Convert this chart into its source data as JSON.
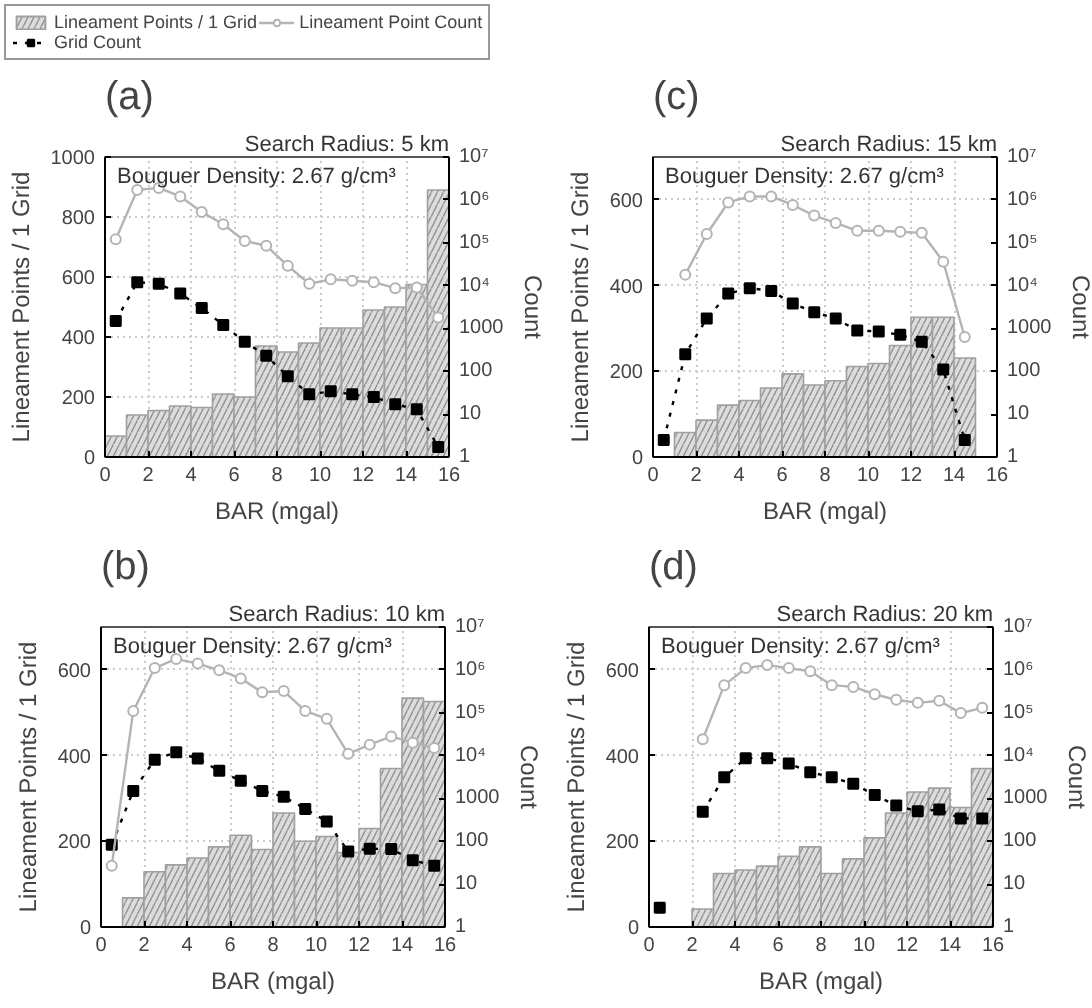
{
  "chart_data": [
    {
      "type": "bar",
      "title": "(a)",
      "xlabel": "BAR (mgal)",
      "ylabel": "Lineament Points / 1 Grid",
      "y2label": "Count",
      "annotations": [
        "Search Radius: 5 km",
        "Bouguer Density: 2.67 g/cm³"
      ],
      "x": [
        0.5,
        1.5,
        2.5,
        3.5,
        4.5,
        5.5,
        6.5,
        7.5,
        8.5,
        9.5,
        10.5,
        11.5,
        12.5,
        13.5,
        14.5,
        15.5
      ],
      "series": [
        {
          "name": "Lineament Points / 1 Grid",
          "color": "#dcdcdc",
          "values": [
            70,
            140,
            155,
            170,
            165,
            210,
            200,
            370,
            350,
            380,
            430,
            430,
            490,
            500,
            575,
            890
          ]
        },
        {
          "name": "Grid Count",
          "type": "line",
          "axis": "y2",
          "color": "#000000",
          "marker": "square",
          "line_style": "dotted",
          "values": [
            1500,
            12000,
            11000,
            6500,
            3000,
            1200,
            490,
            230,
            77,
            29,
            34,
            29,
            25,
            17,
            13,
            1.7
          ]
        },
        {
          "name": "Lineament Point Count",
          "type": "line",
          "axis": "y2",
          "color": "#b4b4b4",
          "marker": "circle",
          "line_style": "solid",
          "values": [
            120000,
            1700000,
            1900000,
            1200000,
            520000,
            270000,
            110000,
            85000,
            29000,
            11000,
            14000,
            13000,
            12000,
            8700,
            9000,
            1800
          ]
        }
      ],
      "xlim": [
        0,
        16
      ],
      "xticks": [
        0,
        2,
        4,
        6,
        8,
        10,
        12,
        14,
        16
      ],
      "ylim": [
        0,
        1000
      ],
      "yticks": [
        0,
        200,
        400,
        600,
        800,
        1000
      ],
      "y2lim": [
        1,
        10000000
      ],
      "y2ticks": [
        1,
        10,
        100,
        1000,
        {
          "value": 10000,
          "label": "10⁴"
        },
        {
          "value": 100000,
          "label": "10⁵"
        },
        {
          "value": 1000000,
          "label": "10⁶"
        },
        {
          "value": 10000000,
          "label": "10⁷"
        }
      ],
      "log": "y2",
      "grid": true,
      "legend": "top"
    },
    {
      "type": "bar",
      "title": "(c)",
      "xlabel": "BAR (mgal)",
      "ylabel": "Lineament Points / 1 Grid",
      "y2label": "Count",
      "annotations": [
        "Search Radius: 15 km",
        "Bouguer Density: 2.67 g/cm³"
      ],
      "x": [
        0.5,
        1.5,
        2.5,
        3.5,
        4.5,
        5.5,
        6.5,
        7.5,
        8.5,
        9.5,
        10.5,
        11.5,
        12.5,
        13.5,
        14.5
      ],
      "series": [
        {
          "color": "#dcdcdc",
          "values": [
            null,
            57,
            86,
            121,
            132,
            161,
            194,
            168,
            178,
            211,
            218,
            260,
            326,
            326,
            231
          ]
        },
        {
          "type": "line",
          "axis": "y2",
          "color": "#000000",
          "marker": "square",
          "line_style": "dotted",
          "values": [
            2.5,
            250,
            1700,
            6500,
            8700,
            7500,
            3800,
            2400,
            1700,
            890,
            850,
            710,
            490,
            110,
            2.5
          ]
        },
        {
          "type": "line",
          "axis": "y2",
          "color": "#b4b4b4",
          "marker": "circle",
          "line_style": "solid",
          "values": [
            null,
            18000,
            160000,
            870000,
            1200000,
            1200000,
            760000,
            430000,
            290000,
            190000,
            190000,
            180000,
            170000,
            36000,
            630
          ]
        }
      ],
      "xlim": [
        0,
        16
      ],
      "xticks": [
        0,
        2,
        4,
        6,
        8,
        10,
        12,
        14,
        16
      ],
      "ylim": [
        0,
        700
      ],
      "yticks": [
        0,
        200,
        400,
        600
      ],
      "y2lim": [
        1,
        10000000
      ],
      "y2ticks": [
        1,
        10,
        100,
        1000,
        {
          "value": 10000,
          "label": "10⁴"
        },
        {
          "value": 100000,
          "label": "10⁵"
        },
        {
          "value": 1000000,
          "label": "10⁶"
        },
        {
          "value": 10000000,
          "label": "10⁷"
        }
      ],
      "log": "y2",
      "grid": true
    },
    {
      "type": "bar",
      "title": "(b)",
      "xlabel": "BAR (mgal)",
      "ylabel": "Lineament Points / 1 Grid",
      "y2label": "Count",
      "annotations": [
        "Search Radius: 10 km",
        "Bouguer Density: 2.67 g/cm³"
      ],
      "x": [
        0.5,
        1.5,
        2.5,
        3.5,
        4.5,
        5.5,
        6.5,
        7.5,
        8.5,
        9.5,
        10.5,
        11.5,
        12.5,
        13.5,
        14.5,
        15.5
      ],
      "series": [
        {
          "color": "#dcdcdc",
          "values": [
            null,
            68,
            129,
            145,
            161,
            187,
            214,
            181,
            266,
            200,
            211,
            174,
            230,
            370,
            534,
            526
          ]
        },
        {
          "type": "line",
          "axis": "y2",
          "color": "#000000",
          "marker": "square",
          "line_style": "dotted",
          "values": [
            83,
            1500,
            8000,
            12000,
            8500,
            4400,
            2600,
            1500,
            1100,
            570,
            290,
            58,
            67,
            66,
            36,
            27
          ]
        },
        {
          "type": "line",
          "axis": "y2",
          "color": "#b4b4b4",
          "marker": "circle",
          "line_style": "solid",
          "values": [
            27,
            110000,
            1100000,
            1800000,
            1400000,
            980000,
            630000,
            300000,
            320000,
            110000,
            72000,
            11000,
            18000,
            28000,
            20000,
            15000
          ]
        }
      ],
      "xlim": [
        0,
        16
      ],
      "xticks": [
        0,
        2,
        4,
        6,
        8,
        10,
        12,
        14,
        16
      ],
      "ylim": [
        0,
        700
      ],
      "yticks": [
        0,
        200,
        400,
        600
      ],
      "y2lim": [
        1,
        10000000
      ],
      "y2ticks": [
        1,
        10,
        100,
        1000,
        {
          "value": 10000,
          "label": "10⁴"
        },
        {
          "value": 100000,
          "label": "10⁵"
        },
        {
          "value": 1000000,
          "label": "10⁶"
        },
        {
          "value": 10000000,
          "label": "10⁷"
        }
      ],
      "log": "y2",
      "grid": true
    },
    {
      "type": "bar",
      "title": "(d)",
      "xlabel": "BAR (mgal)",
      "ylabel": "Lineament Points / 1 Grid",
      "y2label": "Count",
      "annotations": [
        "Search Radius: 20 km",
        "Bouguer Density: 2.67 g/cm³"
      ],
      "x": [
        0.5,
        1.5,
        2.5,
        3.5,
        4.5,
        5.5,
        6.5,
        7.5,
        8.5,
        9.5,
        10.5,
        11.5,
        12.5,
        13.5,
        14.5,
        15.5
      ],
      "series": [
        {
          "color": "#dcdcdc",
          "values": [
            null,
            null,
            42,
            125,
            133,
            142,
            165,
            187,
            125,
            159,
            208,
            266,
            315,
            324,
            279,
            370
          ]
        },
        {
          "type": "line",
          "axis": "y2",
          "color": "#000000",
          "marker": "square",
          "line_style": "dotted",
          "values": [
            2.8,
            null,
            490,
            3100,
            8700,
            8700,
            6500,
            4100,
            3100,
            2200,
            1200,
            680,
            500,
            550,
            340,
            340
          ]
        },
        {
          "type": "line",
          "axis": "y2",
          "color": "#b4b4b4",
          "marker": "circle",
          "line_style": "solid",
          "values": [
            null,
            null,
            24000,
            440000,
            1100000,
            1300000,
            1100000,
            930000,
            440000,
            400000,
            270000,
            200000,
            170000,
            190000,
            98000,
            130000
          ]
        }
      ],
      "xlim": [
        0,
        16
      ],
      "xticks": [
        0,
        2,
        4,
        6,
        8,
        10,
        12,
        14,
        16
      ],
      "ylim": [
        0,
        700
      ],
      "yticks": [
        0,
        200,
        400,
        600
      ],
      "y2lim": [
        1,
        10000000
      ],
      "y2ticks": [
        1,
        10,
        100,
        1000,
        {
          "value": 10000,
          "label": "10⁴"
        },
        {
          "value": 100000,
          "label": "10⁵"
        },
        {
          "value": 1000000,
          "label": "10⁶"
        },
        {
          "value": 10000000,
          "label": "10⁷"
        }
      ],
      "log": "y2",
      "grid": true
    }
  ]
}
